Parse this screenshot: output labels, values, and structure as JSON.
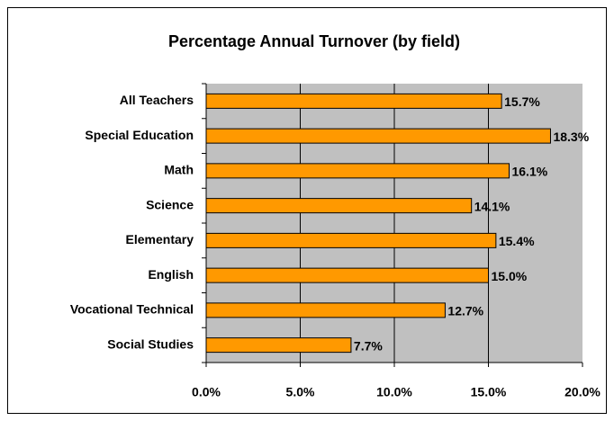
{
  "chart_data": {
    "type": "bar",
    "orientation": "horizontal",
    "title": "Percentage Annual Turnover (by field)",
    "categories": [
      "All Teachers",
      "Special Education",
      "Math",
      "Science",
      "Elementary",
      "English",
      "Vocational Technical",
      "Social Studies"
    ],
    "values": [
      15.7,
      18.3,
      16.1,
      14.1,
      15.4,
      15.0,
      12.7,
      7.7
    ],
    "value_labels": [
      "15.7%",
      "18.3%",
      "16.1%",
      "14.1%",
      "15.4%",
      "15.0%",
      "12.7%",
      "7.7%"
    ],
    "color": "#ff9900",
    "xlim": [
      0,
      20
    ],
    "xticks": [
      {
        "value": 0,
        "label": "0.0%"
      },
      {
        "value": 5,
        "label": "5.0%"
      },
      {
        "value": 10,
        "label": "10.0%"
      },
      {
        "value": 15,
        "label": "15.0%"
      },
      {
        "value": 20,
        "label": "20.0%"
      }
    ],
    "grid": true
  }
}
